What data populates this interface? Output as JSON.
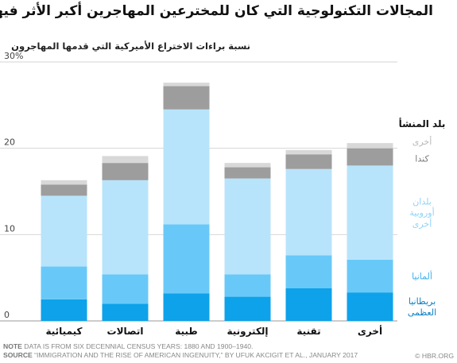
{
  "headline": "المجالات التكنولوجية التي كان للمخترعين المهاجرين أكبر الأثر فيها:",
  "source_credit": "© HBR.ORG",
  "notes": {
    "note_label": "NOTE",
    "note_text": "DATA IS FROM SIX DECENNIAL CENSUS YEARS: 1880 AND 1900–1940.",
    "source_label": "SOURCE",
    "source_text": "“IMMIGRATION AND THE RISE OF AMERICAN INGENUITY,” BY UFUK AKCIGIT ET AL., JANUARY 2017"
  },
  "chart_data": {
    "type": "bar",
    "stacked": true,
    "title": "نسبة براءات الاختراع الأميركية التي قدمها المهاجرون",
    "xlabel": "",
    "ylabel": "",
    "ylim": [
      0,
      30
    ],
    "yticks": [
      {
        "value": 0,
        "label": "0"
      },
      {
        "value": 10,
        "label": "10"
      },
      {
        "value": 20,
        "label": "20"
      },
      {
        "value": 30,
        "label": "30%"
      }
    ],
    "grid": true,
    "legend_title": "بلد المنشأ",
    "legend_position": "right",
    "categories": [
      "كيميائية",
      "اتصالات",
      "طبية",
      "إلكترونية",
      "تقنية",
      "أخرى"
    ],
    "series": [
      {
        "name": "بريطانيا العظمى",
        "color": "#0da2ea",
        "values": [
          2.5,
          2.0,
          3.2,
          2.8,
          3.8,
          3.3
        ]
      },
      {
        "name": "ألمانيا",
        "color": "#68c9f8",
        "values": [
          3.8,
          3.4,
          8.0,
          2.6,
          3.8,
          3.8
        ]
      },
      {
        "name": "بلدان أوروبية أخرى",
        "color": "#b8e4fb",
        "values": [
          8.2,
          10.9,
          13.3,
          11.1,
          10.0,
          10.9
        ]
      },
      {
        "name": "كندا",
        "color": "#9d9d9d",
        "values": [
          1.3,
          2.0,
          2.7,
          1.3,
          1.7,
          2.0
        ]
      },
      {
        "name": "أخرى",
        "color": "#d8d8d8",
        "values": [
          0.5,
          0.8,
          0.4,
          0.5,
          0.5,
          0.6
        ]
      }
    ]
  }
}
